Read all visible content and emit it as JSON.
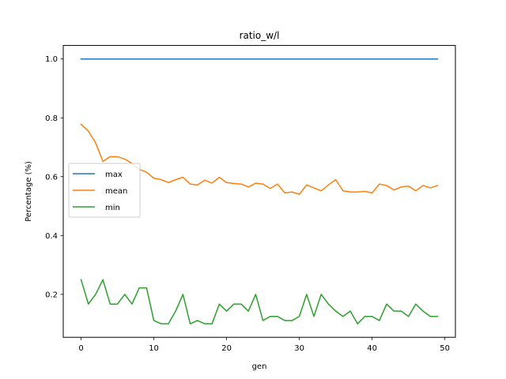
{
  "chart_data": {
    "type": "line",
    "title": "ratio_w/l",
    "xlabel": "gen",
    "ylabel": "Percentage (%)",
    "xlim": [
      -2.45,
      51.45
    ],
    "ylim": [
      0.054,
      1.046
    ],
    "xticks": [
      0,
      10,
      20,
      30,
      40,
      50
    ],
    "xtick_labels": [
      "0",
      "10",
      "20",
      "30",
      "40",
      "50"
    ],
    "yticks": [
      0.2,
      0.4,
      0.6,
      0.8,
      1.0
    ],
    "ytick_labels": [
      "0.2",
      "0.4",
      "0.6",
      "0.8",
      "1.0"
    ],
    "grid": false,
    "legend": "center-left",
    "x": [
      0,
      1,
      2,
      3,
      4,
      5,
      6,
      7,
      8,
      9,
      10,
      11,
      12,
      13,
      14,
      15,
      16,
      17,
      18,
      19,
      20,
      21,
      22,
      23,
      24,
      25,
      26,
      27,
      28,
      29,
      30,
      31,
      32,
      33,
      34,
      35,
      36,
      37,
      38,
      39,
      40,
      41,
      42,
      43,
      44,
      45,
      46,
      47,
      48,
      49
    ],
    "series": [
      {
        "name": "max",
        "color": "#1f77b4",
        "values": [
          1.0,
          1.0,
          1.0,
          1.0,
          1.0,
          1.0,
          1.0,
          1.0,
          1.0,
          1.0,
          1.0,
          1.0,
          1.0,
          1.0,
          1.0,
          1.0,
          1.0,
          1.0,
          1.0,
          1.0,
          1.0,
          1.0,
          1.0,
          1.0,
          1.0,
          1.0,
          1.0,
          1.0,
          1.0,
          1.0,
          1.0,
          1.0,
          1.0,
          1.0,
          1.0,
          1.0,
          1.0,
          1.0,
          1.0,
          1.0,
          1.0,
          1.0,
          1.0,
          1.0,
          1.0,
          1.0,
          1.0,
          1.0,
          1.0,
          1.0
        ]
      },
      {
        "name": "mean",
        "color": "#ff7f0e",
        "values": [
          0.778,
          0.755,
          0.715,
          0.652,
          0.668,
          0.668,
          0.66,
          0.645,
          0.625,
          0.615,
          0.595,
          0.59,
          0.58,
          0.59,
          0.598,
          0.575,
          0.572,
          0.588,
          0.578,
          0.598,
          0.58,
          0.577,
          0.575,
          0.565,
          0.578,
          0.575,
          0.56,
          0.575,
          0.545,
          0.548,
          0.54,
          0.572,
          0.562,
          0.552,
          0.572,
          0.59,
          0.552,
          0.548,
          0.548,
          0.55,
          0.545,
          0.575,
          0.57,
          0.555,
          0.565,
          0.568,
          0.552,
          0.57,
          0.562,
          0.57
        ]
      },
      {
        "name": "min",
        "color": "#2ca02c",
        "values": [
          0.25,
          0.167,
          0.2,
          0.25,
          0.167,
          0.167,
          0.2,
          0.167,
          0.222,
          0.222,
          0.111,
          0.1,
          0.1,
          0.143,
          0.2,
          0.1,
          0.111,
          0.1,
          0.1,
          0.167,
          0.143,
          0.167,
          0.167,
          0.143,
          0.2,
          0.111,
          0.125,
          0.125,
          0.111,
          0.111,
          0.125,
          0.2,
          0.125,
          0.2,
          0.167,
          0.143,
          0.125,
          0.143,
          0.1,
          0.125,
          0.125,
          0.111,
          0.167,
          0.143,
          0.143,
          0.125,
          0.167,
          0.143,
          0.125,
          0.125
        ]
      }
    ]
  }
}
